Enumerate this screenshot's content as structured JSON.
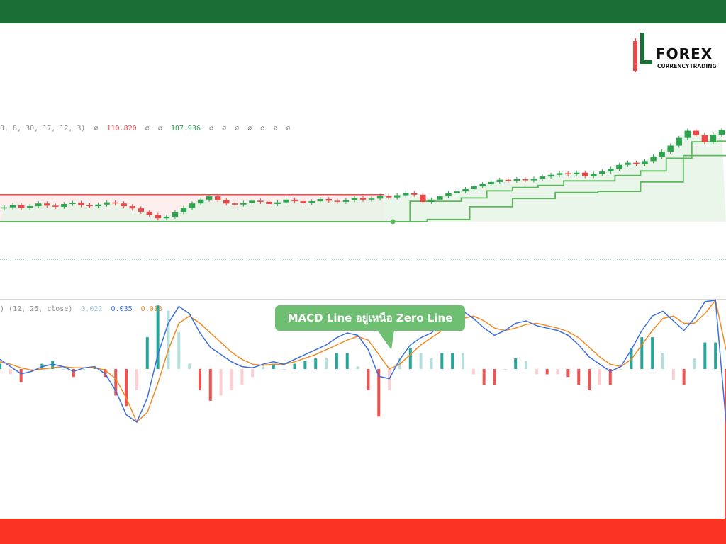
{
  "header": {
    "bar_color": "#1a6f36"
  },
  "footer": {
    "bar_color": "#fa3325"
  },
  "logo": {
    "word": "FOREX",
    "sub": "CURRENCYTRADING"
  },
  "chart_data": [
    {
      "type": "candlestick",
      "legend": {
        "params": "0, 8, 30, 17, 12, 3)",
        "empty_values": "∅",
        "upper": "110.820",
        "lower": "107.936"
      },
      "colors": {
        "up": "#2ea44f",
        "down": "#e84848",
        "band_line": "#5cb85c",
        "upper_band": "#e84848"
      },
      "candles": [
        [
          50,
          50.2
        ],
        [
          50.2,
          50.6
        ],
        [
          50.6,
          50.1
        ],
        [
          50.1,
          50.4
        ],
        [
          50.4,
          50.9
        ],
        [
          50.9,
          50.5
        ],
        [
          50.5,
          50.3
        ],
        [
          50.3,
          50.8
        ],
        [
          50.8,
          51.0
        ],
        [
          51.0,
          50.6
        ],
        [
          50.6,
          50.4
        ],
        [
          50.4,
          50.7
        ],
        [
          50.7,
          51.1
        ],
        [
          51.1,
          50.9
        ],
        [
          50.9,
          50.4
        ],
        [
          50.4,
          50.0
        ],
        [
          50.0,
          49.4
        ],
        [
          49.4,
          48.8
        ],
        [
          48.8,
          48.2
        ],
        [
          48.2,
          48.5
        ],
        [
          48.5,
          49.3
        ],
        [
          49.3,
          50.1
        ],
        [
          50.1,
          50.9
        ],
        [
          50.9,
          51.6
        ],
        [
          51.6,
          52.2
        ],
        [
          52.2,
          51.5
        ],
        [
          51.5,
          50.9
        ],
        [
          50.9,
          50.7
        ],
        [
          50.7,
          51.0
        ],
        [
          51.0,
          51.4
        ],
        [
          51.4,
          51.2
        ],
        [
          51.2,
          50.8
        ],
        [
          50.8,
          51.1
        ],
        [
          51.1,
          51.6
        ],
        [
          51.6,
          51.3
        ],
        [
          51.3,
          51.0
        ],
        [
          51.0,
          51.3
        ],
        [
          51.3,
          51.7
        ],
        [
          51.7,
          51.4
        ],
        [
          51.4,
          51.2
        ],
        [
          51.2,
          51.5
        ],
        [
          51.5,
          51.9
        ],
        [
          51.9,
          51.6
        ],
        [
          51.6,
          51.8
        ],
        [
          51.8,
          52.3
        ],
        [
          52.3,
          52.0
        ],
        [
          52.0,
          52.4
        ],
        [
          52.4,
          52.8
        ],
        [
          52.8,
          52.5
        ],
        [
          52.5,
          51.2
        ],
        [
          51.2,
          51.6
        ],
        [
          51.6,
          52.2
        ],
        [
          52.2,
          52.8
        ],
        [
          52.8,
          53.1
        ],
        [
          53.1,
          53.5
        ],
        [
          53.5,
          54.0
        ],
        [
          54.0,
          54.4
        ],
        [
          54.4,
          54.8
        ],
        [
          54.8,
          55.2
        ],
        [
          55.2,
          55.0
        ],
        [
          55.0,
          55.3
        ],
        [
          55.3,
          55.1
        ],
        [
          55.1,
          55.4
        ],
        [
          55.4,
          55.8
        ],
        [
          55.8,
          56.1
        ],
        [
          56.1,
          56.4
        ],
        [
          56.4,
          56.2
        ],
        [
          56.2,
          56.5
        ],
        [
          56.5,
          55.9
        ],
        [
          55.9,
          56.3
        ],
        [
          56.3,
          56.7
        ],
        [
          56.7,
          57.2
        ],
        [
          57.2,
          57.9
        ],
        [
          57.9,
          58.3
        ],
        [
          58.3,
          58.0
        ],
        [
          58.0,
          58.6
        ],
        [
          58.6,
          59.4
        ],
        [
          59.4,
          60.3
        ],
        [
          60.3,
          61.4
        ],
        [
          61.4,
          62.8
        ],
        [
          62.8,
          64.1
        ],
        [
          64.1,
          63.3
        ],
        [
          63.3,
          62.1
        ],
        [
          62.1,
          63.4
        ],
        [
          63.4,
          64.2
        ]
      ]
    },
    {
      "type": "line",
      "legend": {
        "params": ") (12, 26, close)",
        "histogram": "0.022",
        "macd": "0.035",
        "signal": "0.013"
      },
      "colors": {
        "macd": "#3d6fe0",
        "signal": "#f08a24",
        "hist_up": "#26a69a",
        "hist_up_weak": "#b2dfdb",
        "hist_down": "#ef5350",
        "hist_down_weak": "#ffcdd2"
      },
      "macd": [
        0.4,
        0.1,
        -0.2,
        -0.1,
        0.1,
        0.2,
        0.1,
        -0.1,
        0.05,
        0.1,
        -0.2,
        -0.9,
        -1.9,
        -2.6,
        -1.2,
        0.6,
        1.9,
        2.6,
        2.3,
        1.5,
        0.9,
        0.6,
        0.3,
        0.1,
        0.05,
        0.2,
        0.3,
        0.2,
        0.4,
        0.6,
        0.8,
        1.0,
        1.3,
        1.5,
        1.4,
        0.8,
        -0.3,
        -0.4,
        0.4,
        1.0,
        1.3,
        1.5,
        1.9,
        2.2,
        2.4,
        2.1,
        1.7,
        1.4,
        1.6,
        1.9,
        2.0,
        1.8,
        1.7,
        1.6,
        1.4,
        1.0,
        0.5,
        0.2,
        -0.1,
        0.1,
        0.8,
        1.6,
        2.2,
        2.4,
        2.0,
        1.6,
        2.1,
        2.8,
        3.4,
        -2.5
      ],
      "signal": [
        0.3,
        0.2,
        0.05,
        -0.05,
        0.0,
        0.05,
        0.1,
        0.05,
        0.05,
        0.05,
        -0.05,
        -0.4,
        -1.2,
        -2.2,
        -1.8,
        -0.6,
        0.8,
        1.9,
        2.2,
        1.9,
        1.5,
        1.1,
        0.7,
        0.4,
        0.2,
        0.15,
        0.2,
        0.2,
        0.3,
        0.45,
        0.6,
        0.8,
        1.0,
        1.2,
        1.35,
        1.2,
        0.6,
        0.0,
        0.2,
        0.6,
        1.0,
        1.3,
        1.6,
        1.9,
        2.1,
        2.2,
        2.0,
        1.7,
        1.6,
        1.7,
        1.85,
        1.9,
        1.8,
        1.7,
        1.55,
        1.3,
        0.9,
        0.5,
        0.2,
        0.1,
        0.4,
        1.0,
        1.6,
        2.1,
        2.2,
        1.9,
        1.9,
        2.3,
        2.9,
        0.8
      ]
    }
  ],
  "annotation": {
    "text": "MACD Line อยู่เหนือ Zero Line",
    "color": "#6fbf73"
  }
}
